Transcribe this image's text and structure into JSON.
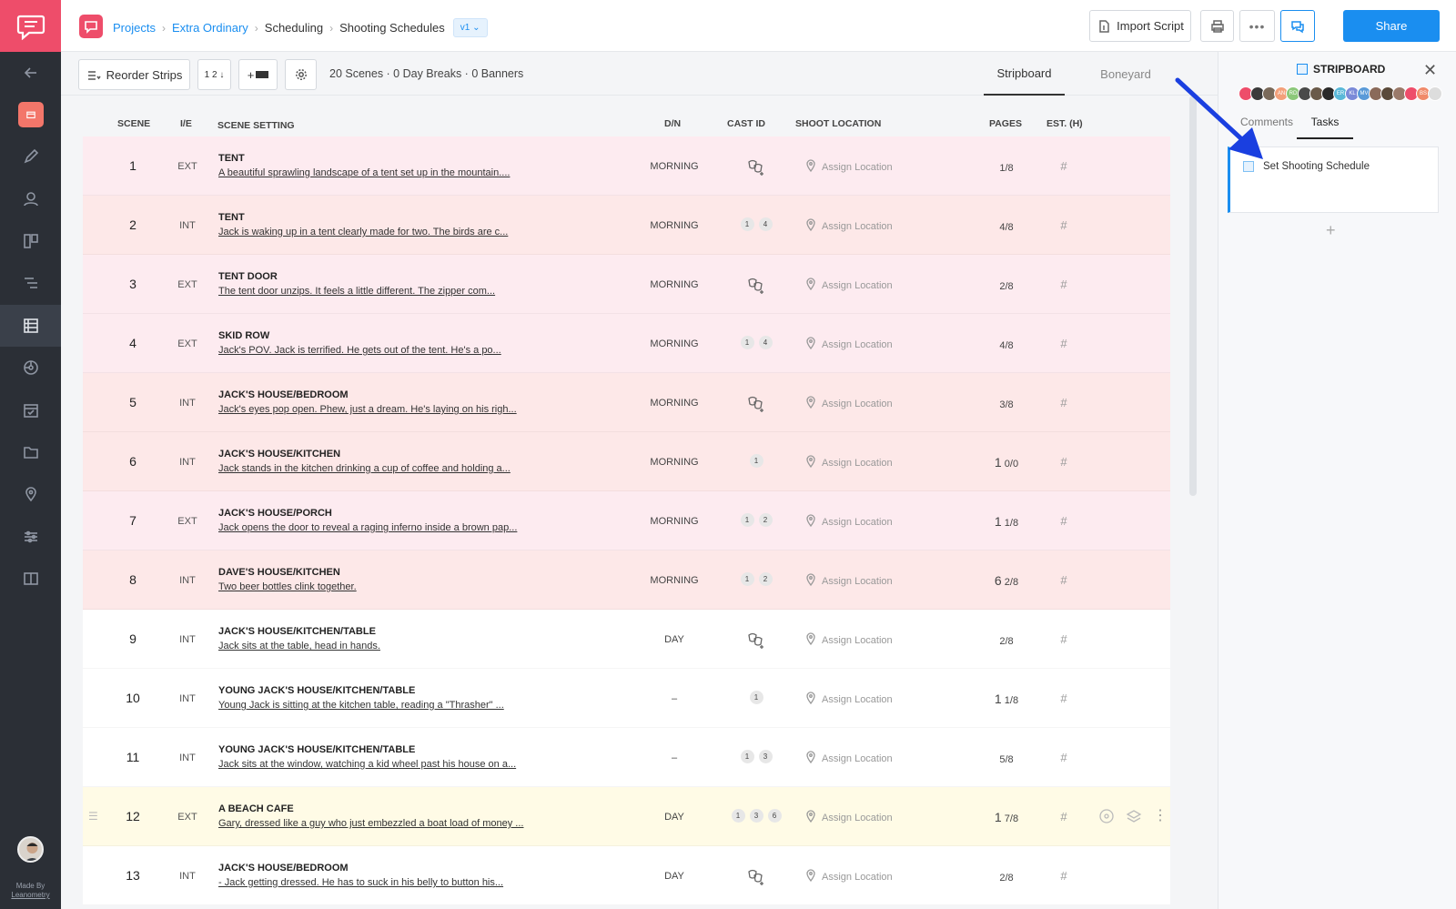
{
  "breadcrumb": {
    "project": "Projects",
    "film": "Extra Ordinary",
    "section": "Scheduling",
    "page": "Shooting Schedules",
    "version": "v1"
  },
  "topbar": {
    "import_label": "Import Script",
    "share_label": "Share"
  },
  "toolbar": {
    "reorder_label": "Reorder Strips",
    "sort_label": "1 2 ↓",
    "add_label": "+",
    "summary": "20 Scenes · 0 Day Breaks · 0 Banners",
    "tabs": [
      "Stripboard",
      "Boneyard"
    ]
  },
  "columns": {
    "scene": "SCENE",
    "ie": "I/E",
    "setting": "SCENE SETTING",
    "dn": "D/N",
    "cast": "CAST ID",
    "location": "SHOOT LOCATION",
    "pages": "PAGES",
    "est": "EST. (H)"
  },
  "location_placeholder": "Assign Location",
  "est_placeholder": "#",
  "rows": [
    {
      "scene": "1",
      "ie": "EXT",
      "setting": "TENT",
      "desc": "A beautiful sprawling landscape of a tent set up in the mountain....",
      "dn": "MORNING",
      "cast": [],
      "pages_whole": "",
      "pages_frac": "1/8",
      "tone": "morning"
    },
    {
      "scene": "2",
      "ie": "INT",
      "setting": "TENT",
      "desc": "Jack is waking up in a tent clearly made for two. The birds are c...",
      "dn": "MORNING",
      "cast": [
        "1",
        "4"
      ],
      "pages_whole": "",
      "pages_frac": "4/8",
      "tone": "morning-alt"
    },
    {
      "scene": "3",
      "ie": "EXT",
      "setting": "TENT DOOR",
      "desc": "The tent door unzips. It feels a little different. The zipper com...",
      "dn": "MORNING",
      "cast": [],
      "pages_whole": "",
      "pages_frac": "2/8",
      "tone": "morning"
    },
    {
      "scene": "4",
      "ie": "EXT",
      "setting": "SKID ROW",
      "desc": "Jack's POV. Jack is terrified. He gets out of the tent. He's a po...",
      "dn": "MORNING",
      "cast": [
        "1",
        "4"
      ],
      "pages_whole": "",
      "pages_frac": "4/8",
      "tone": "morning"
    },
    {
      "scene": "5",
      "ie": "INT",
      "setting": "JACK'S HOUSE/BEDROOM",
      "desc": "Jack's eyes pop open. Phew, just a dream. He's laying on his righ...",
      "dn": "MORNING",
      "cast": [],
      "pages_whole": "",
      "pages_frac": "3/8",
      "tone": "morning-alt"
    },
    {
      "scene": "6",
      "ie": "INT",
      "setting": "JACK'S HOUSE/KITCHEN",
      "desc": "Jack stands in the kitchen drinking a cup of coffee and holding a...",
      "dn": "MORNING",
      "cast": [
        "1"
      ],
      "pages_whole": "1",
      "pages_frac": "0/0",
      "tone": "morning-alt"
    },
    {
      "scene": "7",
      "ie": "EXT",
      "setting": "JACK'S HOUSE/PORCH",
      "desc": "Jack opens the door to reveal a raging inferno inside a brown pap...",
      "dn": "MORNING",
      "cast": [
        "1",
        "2"
      ],
      "pages_whole": "1",
      "pages_frac": "1/8",
      "tone": "morning"
    },
    {
      "scene": "8",
      "ie": "INT",
      "setting": "DAVE'S HOUSE/KITCHEN",
      "desc": "Two beer bottles clink together.",
      "dn": "MORNING",
      "cast": [
        "1",
        "2"
      ],
      "pages_whole": "6",
      "pages_frac": "2/8",
      "tone": "morning-alt"
    },
    {
      "scene": "9",
      "ie": "INT",
      "setting": "JACK'S HOUSE/KITCHEN/TABLE",
      "desc": "Jack sits at the table, head in hands.",
      "dn": "DAY",
      "cast": [],
      "pages_whole": "",
      "pages_frac": "2/8",
      "tone": "day"
    },
    {
      "scene": "10",
      "ie": "INT",
      "setting": "YOUNG JACK'S HOUSE/KITCHEN/TABLE",
      "desc": "Young Jack is sitting at the kitchen table, reading a \"Thrasher\" ...",
      "dn": "–",
      "cast": [
        "1"
      ],
      "pages_whole": "1",
      "pages_frac": "1/8",
      "tone": "day"
    },
    {
      "scene": "11",
      "ie": "INT",
      "setting": "YOUNG JACK'S HOUSE/KITCHEN/TABLE",
      "desc": "Jack sits at the window, watching a kid wheel past his house on a...",
      "dn": "–",
      "cast": [
        "1",
        "3"
      ],
      "pages_whole": "",
      "pages_frac": "5/8",
      "tone": "day"
    },
    {
      "scene": "12",
      "ie": "EXT",
      "setting": "A BEACH CAFE",
      "desc": "Gary, dressed like a guy who just embezzled a boat load of money ...",
      "dn": "DAY",
      "cast": [
        "1",
        "3",
        "6"
      ],
      "pages_whole": "1",
      "pages_frac": "7/8",
      "tone": "sel"
    },
    {
      "scene": "13",
      "ie": "INT",
      "setting": "JACK'S HOUSE/BEDROOM",
      "desc": "- Jack getting dressed. He has to suck in his belly to button his...",
      "dn": "DAY",
      "cast": [],
      "pages_whole": "",
      "pages_frac": "2/8",
      "tone": "day"
    }
  ],
  "panel": {
    "title": "STRIPBOARD",
    "tabs": [
      "Comments",
      "Tasks"
    ],
    "task": "Set Shooting Schedule",
    "avatars": [
      {
        "label": "",
        "color": "#ee4d6a"
      },
      {
        "label": "",
        "color": "#3a3a3a"
      },
      {
        "label": "",
        "color": "#7a6a5a"
      },
      {
        "label": "AN",
        "color": "#f3a07a"
      },
      {
        "label": "RD",
        "color": "#8cc87a"
      },
      {
        "label": "",
        "color": "#4a4a4a"
      },
      {
        "label": "",
        "color": "#6a5a4a"
      },
      {
        "label": "",
        "color": "#2a2a2a"
      },
      {
        "label": "ER",
        "color": "#5ab8d8"
      },
      {
        "label": "KL",
        "color": "#7a8ad8"
      },
      {
        "label": "MV",
        "color": "#5a9ad8"
      },
      {
        "label": "",
        "color": "#8a6a5a"
      },
      {
        "label": "",
        "color": "#5a4a3a"
      },
      {
        "label": "",
        "color": "#9a7a6a"
      },
      {
        "label": "",
        "color": "#ee4d6a"
      },
      {
        "label": "BS",
        "color": "#f08a6a"
      },
      {
        "label": "",
        "color": "#dddddd"
      }
    ]
  },
  "nav": {
    "made_by": "Made By",
    "brand": "Leanometry"
  },
  "colors": {
    "accent": "#1a8ef0",
    "brand": "#ee4d6a",
    "arrow": "#1a3fe0"
  }
}
